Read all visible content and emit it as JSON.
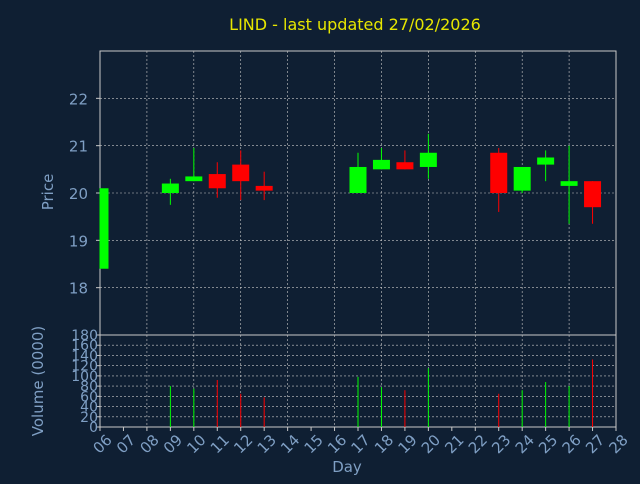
{
  "title": "LIND - last updated 27/02/2026",
  "colors": {
    "background": "#0f1f33",
    "title": "#e6e600",
    "axis_text": "#7f9fc4",
    "grid": "#c8c8c8",
    "up": "#00ff00",
    "down": "#ff0000"
  },
  "chart_data": [
    {
      "type": "candlestick",
      "ylabel": "Price",
      "ylim": [
        17,
        23
      ],
      "yticks": [
        "18",
        "19",
        "20",
        "21",
        "22"
      ],
      "grid": true,
      "candles": [
        {
          "day": "06",
          "open": 18.4,
          "high": 20.1,
          "low": 18.4,
          "close": 20.1
        },
        {
          "day": "09",
          "open": 20.0,
          "high": 20.3,
          "low": 19.75,
          "close": 20.2
        },
        {
          "day": "10",
          "open": 20.25,
          "high": 20.95,
          "low": 20.25,
          "close": 20.35
        },
        {
          "day": "11",
          "open": 20.4,
          "high": 20.65,
          "low": 19.9,
          "close": 20.1
        },
        {
          "day": "12",
          "open": 20.6,
          "high": 20.9,
          "low": 19.85,
          "close": 20.25
        },
        {
          "day": "13",
          "open": 20.15,
          "high": 20.45,
          "low": 19.85,
          "close": 20.05
        },
        {
          "day": "17",
          "open": 20.0,
          "high": 20.85,
          "low": 20.0,
          "close": 20.55
        },
        {
          "day": "18",
          "open": 20.5,
          "high": 20.95,
          "low": 20.5,
          "close": 20.7
        },
        {
          "day": "19",
          "open": 20.65,
          "high": 20.9,
          "low": 20.5,
          "close": 20.5
        },
        {
          "day": "20",
          "open": 20.55,
          "high": 21.25,
          "low": 20.3,
          "close": 20.85
        },
        {
          "day": "23",
          "open": 20.85,
          "high": 20.95,
          "low": 19.6,
          "close": 20.0
        },
        {
          "day": "24",
          "open": 20.05,
          "high": 20.55,
          "low": 20.0,
          "close": 20.55
        },
        {
          "day": "25",
          "open": 20.6,
          "high": 20.9,
          "low": 20.25,
          "close": 20.75
        },
        {
          "day": "26",
          "open": 20.15,
          "high": 21.0,
          "low": 19.35,
          "close": 20.25
        },
        {
          "day": "27",
          "open": 20.25,
          "high": 20.25,
          "low": 19.35,
          "close": 19.7
        }
      ]
    },
    {
      "type": "bar",
      "ylabel": "Volume (0000)",
      "xlabel": "Day",
      "ylim": [
        0,
        180
      ],
      "yticks": [
        "0",
        "20",
        "40",
        "60",
        "80",
        "100",
        "120",
        "140",
        "160",
        "180"
      ],
      "grid": true,
      "categories": [
        "06",
        "07",
        "08",
        "09",
        "10",
        "11",
        "12",
        "13",
        "14",
        "15",
        "16",
        "17",
        "18",
        "19",
        "20",
        "21",
        "22",
        "23",
        "24",
        "25",
        "26",
        "27",
        "28"
      ],
      "values": [
        {
          "day": "09",
          "volume": 80,
          "direction": "up"
        },
        {
          "day": "10",
          "volume": 75,
          "direction": "up"
        },
        {
          "day": "11",
          "volume": 92,
          "direction": "down"
        },
        {
          "day": "12",
          "volume": 65,
          "direction": "down"
        },
        {
          "day": "13",
          "volume": 58,
          "direction": "down"
        },
        {
          "day": "17",
          "volume": 98,
          "direction": "up"
        },
        {
          "day": "18",
          "volume": 78,
          "direction": "up"
        },
        {
          "day": "19",
          "volume": 72,
          "direction": "down"
        },
        {
          "day": "20",
          "volume": 115,
          "direction": "up"
        },
        {
          "day": "23",
          "volume": 65,
          "direction": "down"
        },
        {
          "day": "24",
          "volume": 72,
          "direction": "up"
        },
        {
          "day": "25",
          "volume": 88,
          "direction": "up"
        },
        {
          "day": "26",
          "volume": 80,
          "direction": "up"
        },
        {
          "day": "27",
          "volume": 132,
          "direction": "down"
        }
      ]
    }
  ]
}
